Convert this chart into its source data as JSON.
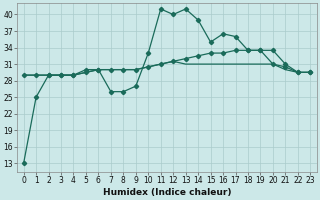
{
  "xlabel": "Humidex (Indice chaleur)",
  "ylabel": "",
  "bg_color": "#cce8e8",
  "grid_color": "#aacccc",
  "line_color": "#1a6b5a",
  "x_ticks": [
    0,
    1,
    2,
    3,
    4,
    5,
    6,
    7,
    8,
    9,
    10,
    11,
    12,
    13,
    14,
    15,
    16,
    17,
    18,
    19,
    20,
    21,
    22,
    23
  ],
  "y_ticks": [
    13,
    16,
    19,
    22,
    25,
    28,
    31,
    34,
    37,
    40
  ],
  "ylim": [
    11.5,
    42
  ],
  "xlim": [
    -0.5,
    23.5
  ],
  "series1_x": [
    0,
    1,
    2,
    3,
    4,
    5,
    6,
    7,
    8,
    9,
    10,
    11,
    12,
    13,
    14,
    15,
    16,
    17,
    18,
    19,
    20,
    21,
    22,
    23
  ],
  "series1_y": [
    13,
    25,
    29,
    29,
    29,
    30,
    30,
    26,
    26,
    27,
    33,
    41,
    40,
    41,
    39,
    35,
    36.5,
    36,
    33.5,
    33.5,
    31,
    30.5,
    29.5,
    29.5
  ],
  "series2_x": [
    0,
    1,
    2,
    3,
    4,
    5,
    6,
    7,
    8,
    9,
    10,
    11,
    12,
    13,
    14,
    15,
    16,
    17,
    18,
    19,
    20,
    21,
    22,
    23
  ],
  "series2_y": [
    29,
    29,
    29,
    29,
    29,
    29.5,
    30,
    30,
    30,
    30,
    30.5,
    31,
    31.5,
    32,
    32.5,
    33,
    33,
    33.5,
    33.5,
    33.5,
    33.5,
    31,
    29.5,
    29.5
  ],
  "series3_x": [
    0,
    1,
    2,
    3,
    4,
    5,
    6,
    7,
    8,
    9,
    10,
    11,
    12,
    13,
    14,
    15,
    16,
    17,
    18,
    19,
    20,
    21,
    22,
    23
  ],
  "series3_y": [
    29,
    29,
    29,
    29,
    29,
    29.5,
    30,
    30,
    30,
    30,
    30.5,
    31,
    31.5,
    31,
    31,
    31,
    31,
    31,
    31,
    31,
    31,
    30,
    29.5,
    29.5
  ]
}
